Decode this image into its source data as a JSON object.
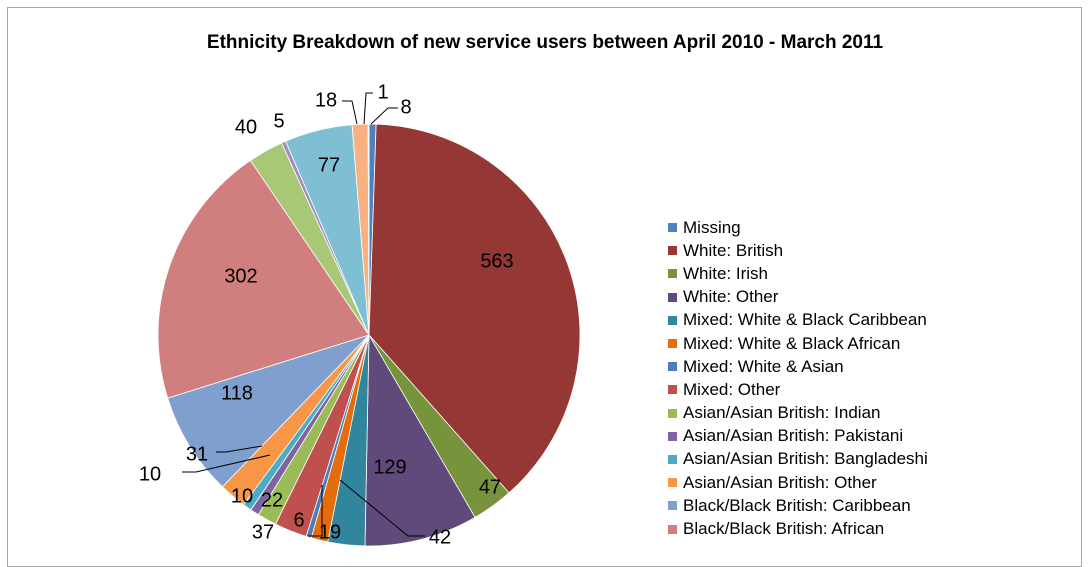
{
  "chart_data": {
    "type": "pie",
    "title": "Ethnicity Breakdown of new service users between April 2010 - March 2011",
    "legend_position": "right",
    "slices": [
      {
        "name": "Missing",
        "value": 8,
        "color": "#4f81bd"
      },
      {
        "name": "White: British",
        "value": 563,
        "color": "#953735"
      },
      {
        "name": "White: Irish",
        "value": 47,
        "color": "#77933c"
      },
      {
        "name": "White: Other",
        "value": 129,
        "color": "#604a7b"
      },
      {
        "name": "Mixed: White & Black Caribbean",
        "value": 42,
        "color": "#31859c"
      },
      {
        "name": "Mixed: White & Black African",
        "value": 19,
        "color": "#e46c0a"
      },
      {
        "name": "Mixed: White & Asian",
        "value": 6,
        "color": "#4a7ebb"
      },
      {
        "name": "Mixed: Other",
        "value": 37,
        "color": "#c0504d"
      },
      {
        "name": "Asian/Asian British: Indian",
        "value": 22,
        "color": "#9bbb59"
      },
      {
        "name": "Asian/Asian British: Pakistani",
        "value": 10,
        "color": "#8064a2"
      },
      {
        "name": "Asian/Asian British: Bangladeshi",
        "value": 10,
        "color": "#4bacc6"
      },
      {
        "name": "Asian/Asian British: Other",
        "value": 31,
        "color": "#f79646"
      },
      {
        "name": "Black/Black British: Caribbean",
        "value": 118,
        "color": "#7f9fcf"
      },
      {
        "name": "Black/Black British: African",
        "value": 302,
        "color": "#d07f7e"
      },
      {
        "name": "",
        "value": 40,
        "color": "#a8c878"
      },
      {
        "name": "",
        "value": 5,
        "color": "#a08ebe"
      },
      {
        "name": "",
        "value": 77,
        "color": "#7fbfd4"
      },
      {
        "name": "",
        "value": 18,
        "color": "#f9b27f"
      },
      {
        "name": "",
        "value": 1,
        "color": "#a0b8d8"
      }
    ],
    "legend": [
      "Missing",
      "White: British",
      "White: Irish",
      "White: Other",
      "Mixed: White & Black Caribbean",
      "Mixed: White & Black African",
      "Mixed: White & Asian",
      "Mixed: Other",
      "Asian/Asian British: Indian",
      "Asian/Asian British: Pakistani",
      "Asian/Asian British: Bangladeshi",
      "Asian/Asian British: Other",
      "Black/Black British: Caribbean",
      "Black/Black British: African"
    ]
  }
}
